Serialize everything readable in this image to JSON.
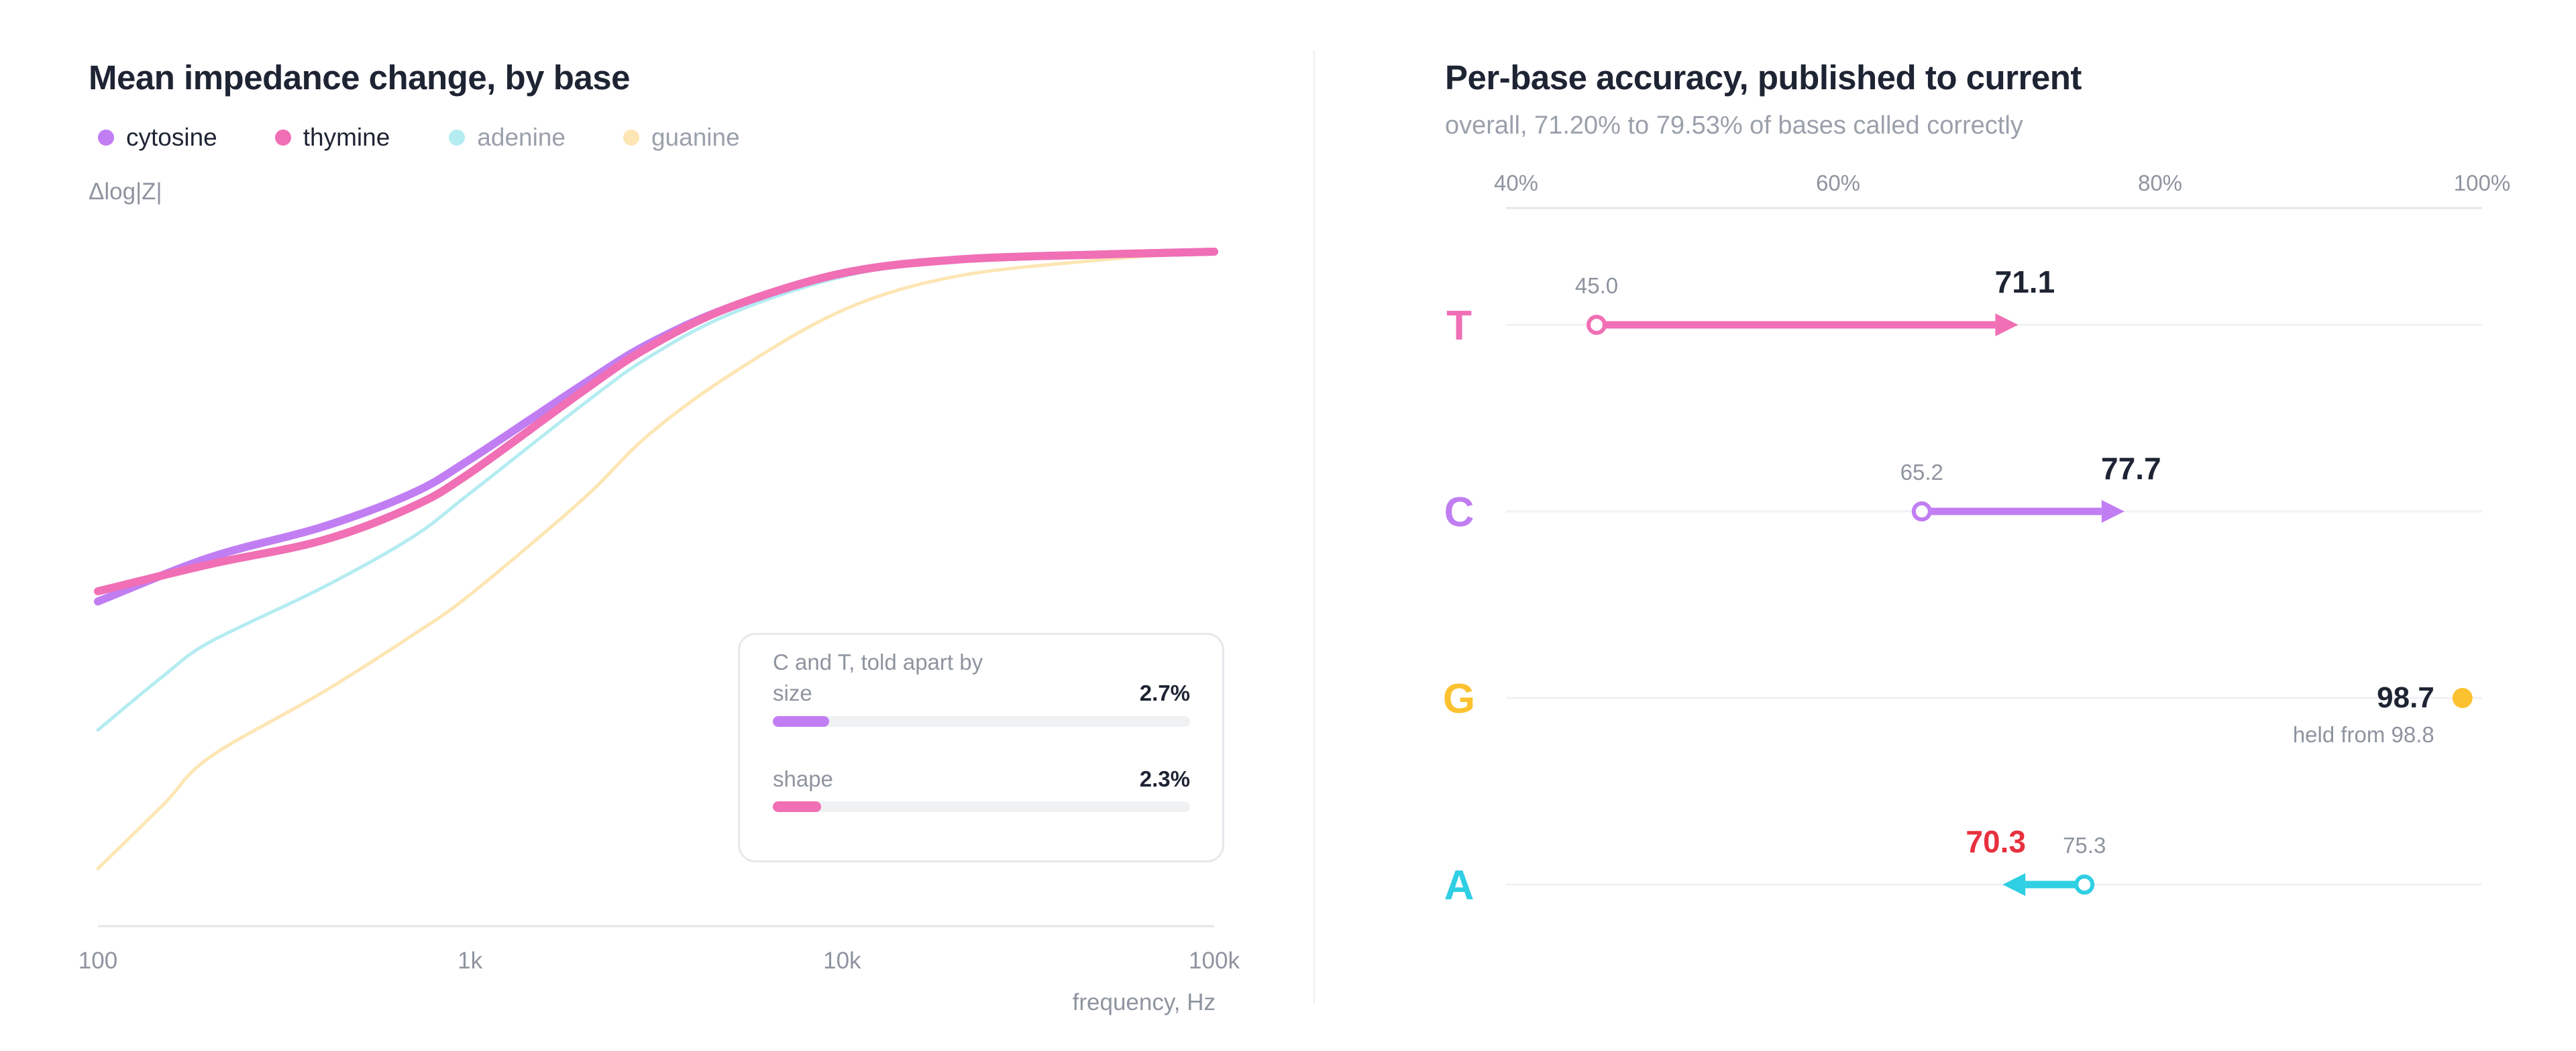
{
  "colors": {
    "cytosine": "#c17ef3",
    "thymine": "#f06fb5",
    "adenine": "#b4ecf1",
    "guanine": "#fde6b4",
    "A_dot": "#2fcfe4",
    "G_dot": "#fcc12f",
    "decline": "#e8303e",
    "axis": "#e4e6ea",
    "grid": "#f1f2f4"
  },
  "left": {
    "title": "Mean impedance change, by base",
    "legend": [
      {
        "name": "cytosine",
        "color": "#c17ef3",
        "muted": false
      },
      {
        "name": "thymine",
        "color": "#f06fb5",
        "muted": false
      },
      {
        "name": "adenine",
        "color": "#b4ecf1",
        "muted": true
      },
      {
        "name": "guanine",
        "color": "#fde6b4",
        "muted": true
      }
    ],
    "callout": {
      "title": "C and T, told apart by",
      "metrics": [
        {
          "label": "size",
          "value": "2.7%",
          "fraction": 0.135,
          "color": "#c17ef3"
        },
        {
          "label": "shape",
          "value": "2.3%",
          "fraction": 0.115,
          "color": "#f06fb5"
        }
      ]
    }
  },
  "right": {
    "title": "Per-base accuracy, published to current",
    "subtitle": "overall, 71.20% to 79.53% of bases called correctly",
    "held_note": "held from 98.8"
  },
  "chart_data": [
    {
      "type": "line",
      "title": "Mean impedance change, by base",
      "xlabel": "frequency, Hz",
      "ylabel": "Δlog|Z|",
      "x_scale": "log",
      "xlim": [
        100,
        100000
      ],
      "ylim": [
        0,
        1
      ],
      "x_ticks": [
        "100",
        "1k",
        "10k",
        "100k"
      ],
      "x_tick_values": [
        100,
        1000,
        10000,
        100000
      ],
      "legend_position": "top-left",
      "grid": false,
      "series": [
        {
          "name": "cytosine",
          "color": "#c17ef3",
          "width": 12,
          "x": [
            100,
            200,
            400,
            700,
            1000,
            2000,
            3000,
            5000,
            10000,
            20000,
            50000,
            100000
          ],
          "y": [
            0.48,
            0.545,
            0.59,
            0.64,
            0.69,
            0.8,
            0.86,
            0.915,
            0.965,
            0.985,
            0.993,
            0.997
          ]
        },
        {
          "name": "thymine",
          "color": "#f06fb5",
          "width": 12,
          "x": [
            100,
            200,
            400,
            700,
            1000,
            2000,
            3000,
            5000,
            10000,
            20000,
            50000,
            100000
          ],
          "y": [
            0.495,
            0.535,
            0.57,
            0.62,
            0.67,
            0.79,
            0.855,
            0.915,
            0.965,
            0.985,
            0.993,
            0.997
          ]
        },
        {
          "name": "adenine",
          "color": "#b4ecf1",
          "width": 5,
          "x": [
            100,
            150,
            200,
            400,
            700,
            1000,
            2000,
            3000,
            5000,
            10000,
            20000,
            50000,
            100000
          ],
          "y": [
            0.29,
            0.37,
            0.42,
            0.5,
            0.575,
            0.64,
            0.77,
            0.84,
            0.905,
            0.96,
            0.985,
            0.993,
            0.997
          ]
        },
        {
          "name": "guanine",
          "color": "#fde6b4",
          "width": 5,
          "x": [
            100,
            150,
            200,
            400,
            700,
            1000,
            2000,
            3000,
            5000,
            10000,
            20000,
            50000,
            100000
          ],
          "y": [
            0.085,
            0.18,
            0.25,
            0.345,
            0.43,
            0.49,
            0.63,
            0.725,
            0.815,
            0.91,
            0.96,
            0.985,
            0.997
          ]
        }
      ],
      "annotations": [
        {
          "text": "C and T, told apart by"
        },
        {
          "label": "size",
          "value": "2.7%"
        },
        {
          "label": "shape",
          "value": "2.3%"
        }
      ]
    },
    {
      "type": "dumbbell",
      "title": "Per-base accuracy, published to current",
      "subtitle": "overall, 71.20% to 79.53% of bases called correctly",
      "x_unit": "%",
      "xlim": [
        40,
        100
      ],
      "x_ticks": [
        "40%",
        "60%",
        "80%",
        "100%"
      ],
      "x_tick_values": [
        40,
        60,
        80,
        100
      ],
      "legend_position": "none",
      "grid": true,
      "rows": [
        {
          "base": "T",
          "color": "#f06fb5",
          "published": 45.0,
          "current": 71.1,
          "published_label": "45.0",
          "current_label": "71.1",
          "direction": "up"
        },
        {
          "base": "C",
          "color": "#c17ef3",
          "published": 65.2,
          "current": 77.7,
          "published_label": "65.2",
          "current_label": "77.7",
          "direction": "up"
        },
        {
          "base": "G",
          "color": "#fcc12f",
          "published": 98.8,
          "current": 98.7,
          "current_label": "98.7",
          "direction": "held",
          "note": "held from 98.8"
        },
        {
          "base": "A",
          "color": "#2fcfe4",
          "published": 75.3,
          "current": 70.3,
          "published_label": "75.3",
          "current_label": "70.3",
          "direction": "down"
        }
      ]
    }
  ]
}
